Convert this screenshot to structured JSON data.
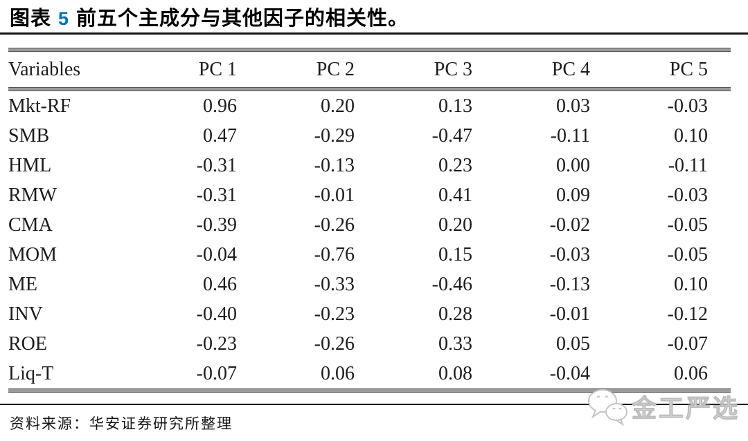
{
  "title": {
    "label_prefix": "图表",
    "figure_number": "5",
    "text": "前五个主成分与其他因子的相关性。"
  },
  "table": {
    "columns": [
      "Variables",
      "PC 1",
      "PC 2",
      "PC 3",
      "PC 4",
      "PC 5"
    ],
    "rows": [
      {
        "variable": "Mkt-RF",
        "values": [
          "0.96",
          "0.20",
          "0.13",
          "0.03",
          "-0.03"
        ]
      },
      {
        "variable": "SMB",
        "values": [
          "0.47",
          "-0.29",
          "-0.47",
          "-0.11",
          "0.10"
        ]
      },
      {
        "variable": "HML",
        "values": [
          "-0.31",
          "-0.13",
          "0.23",
          "0.00",
          "-0.11"
        ]
      },
      {
        "variable": "RMW",
        "values": [
          "-0.31",
          "-0.01",
          "0.41",
          "0.09",
          "-0.03"
        ]
      },
      {
        "variable": "CMA",
        "values": [
          "-0.39",
          "-0.26",
          "0.20",
          "-0.02",
          "-0.05"
        ]
      },
      {
        "variable": "MOM",
        "values": [
          "-0.04",
          "-0.76",
          "0.15",
          "-0.03",
          "-0.05"
        ]
      },
      {
        "variable": "ME",
        "values": [
          "0.46",
          "-0.33",
          "-0.46",
          "-0.13",
          "0.10"
        ]
      },
      {
        "variable": "INV",
        "values": [
          "-0.40",
          "-0.23",
          "0.28",
          "-0.01",
          "-0.12"
        ]
      },
      {
        "variable": "ROE",
        "values": [
          "-0.23",
          "-0.26",
          "0.33",
          "0.05",
          "-0.07"
        ]
      },
      {
        "variable": "Liq-T",
        "values": [
          "-0.07",
          "0.06",
          "0.08",
          "-0.04",
          "0.06"
        ]
      }
    ]
  },
  "footer": {
    "source": "资料来源：华安证券研究所整理"
  },
  "watermark": {
    "text": "金工严选",
    "icon": "wechat-icon"
  },
  "colors": {
    "figure_number_blue": "#0070c0",
    "rule_black": "#111111",
    "table_line_gray": "#9a9a9a",
    "text_black": "#1c1c1c",
    "watermark_gray": "#bdbdbd"
  }
}
